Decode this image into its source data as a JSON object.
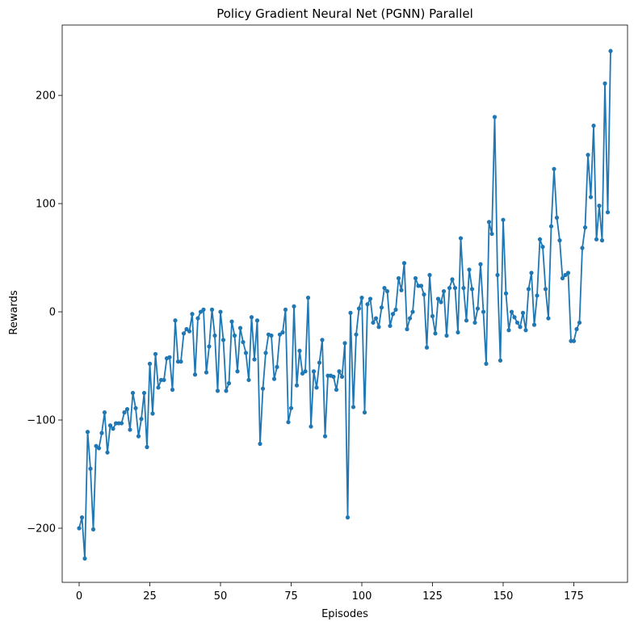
{
  "chart_data": {
    "type": "line",
    "title": "Policy Gradient Neural Net (PGNN) Parallel",
    "xlabel": "Episodes",
    "ylabel": "Rewards",
    "xlim": [
      -6,
      194
    ],
    "ylim": [
      -250,
      265
    ],
    "xticks": [
      0,
      25,
      50,
      75,
      100,
      125,
      150,
      175
    ],
    "yticks": [
      -200,
      -100,
      0,
      100,
      200
    ],
    "ytick_labels": [
      "−200",
      "−100",
      "0",
      "100",
      "200"
    ],
    "grid": false,
    "color": "#1f77b4",
    "series": [
      {
        "x": [
          0,
          1,
          2,
          3,
          4,
          5,
          6,
          7,
          8,
          9,
          10,
          11,
          12,
          13,
          14,
          15,
          16,
          17,
          18,
          19,
          20,
          21,
          22,
          23,
          24,
          25,
          26,
          27,
          28,
          29,
          30,
          31,
          32,
          33,
          34,
          35,
          36,
          37,
          38,
          39,
          40,
          41,
          42,
          43,
          44,
          45,
          46,
          47,
          48,
          49,
          50,
          51,
          52,
          53,
          54,
          55,
          56,
          57,
          58,
          59,
          60,
          61,
          62,
          63,
          64,
          65,
          66,
          67,
          68,
          69,
          70,
          71,
          72,
          73,
          74,
          75,
          76,
          77,
          78,
          79,
          80,
          81,
          82,
          83,
          84,
          85,
          86,
          87,
          88,
          89,
          90,
          91,
          92,
          93,
          94,
          95,
          96,
          97,
          98,
          99,
          100,
          101,
          102,
          103,
          104,
          105,
          106,
          107,
          108,
          109,
          110,
          111,
          112,
          113,
          114,
          115,
          116,
          117,
          118,
          119,
          120,
          121,
          122,
          123,
          124,
          125,
          126,
          127,
          128,
          129,
          130,
          131,
          132,
          133,
          134,
          135,
          136,
          137,
          138,
          139,
          140,
          141,
          142,
          143,
          144,
          145,
          146,
          147,
          148,
          149,
          150,
          151,
          152,
          153,
          154,
          155,
          156,
          157,
          158,
          159,
          160,
          161,
          162,
          163,
          164,
          165,
          166,
          167,
          168,
          169,
          170,
          171,
          172,
          173,
          174,
          175,
          176,
          177,
          178,
          179,
          180,
          181,
          182,
          183,
          184,
          185,
          186,
          187,
          188
        ],
        "y": [
          -200,
          -190,
          -228,
          -111,
          -145,
          -201,
          -124,
          -126,
          -112,
          -93,
          -130,
          -105,
          -108,
          -103,
          -103,
          -103,
          -93,
          -90,
          -109,
          -75,
          -89,
          -115,
          -99,
          -75,
          -125,
          -48,
          -94,
          -39,
          -70,
          -63,
          -63,
          -43,
          -42,
          -72,
          -8,
          -46,
          -46,
          -20,
          -16,
          -18,
          -2,
          -58,
          -6,
          0,
          2,
          -56,
          -32,
          2,
          -22,
          -73,
          0,
          -26,
          -73,
          -66,
          -9,
          -22,
          -55,
          -15,
          -28,
          -38,
          -63,
          -5,
          -44,
          -8,
          -122,
          -71,
          -38,
          -21,
          -22,
          -62,
          -51,
          -21,
          -19,
          2,
          -102,
          -89,
          5,
          -68,
          -36,
          -57,
          -55,
          13,
          -106,
          -55,
          -70,
          -47,
          -26,
          -115,
          -59,
          -59,
          -60,
          -72,
          -55,
          -60,
          -29,
          -190,
          -1,
          -88,
          -21,
          3,
          13,
          -93,
          7,
          12,
          -10,
          -6,
          -14,
          4,
          22,
          19,
          -13,
          -2,
          2,
          31,
          20,
          45,
          -16,
          -6,
          0,
          31,
          24,
          24,
          16,
          -33,
          34,
          -4,
          -20,
          12,
          9,
          19,
          -22,
          22,
          30,
          22,
          -19,
          68,
          22,
          -8,
          39,
          21,
          -10,
          3,
          44,
          0,
          -48,
          83,
          72,
          180,
          34,
          -45,
          85,
          17,
          -17,
          0,
          -5,
          -10,
          -14,
          -1,
          -17,
          21,
          36,
          -12,
          15,
          67,
          60,
          21,
          -6,
          79,
          132,
          87,
          66,
          31,
          34,
          36,
          -27,
          -27,
          -16,
          -10,
          59,
          78,
          145,
          106,
          172,
          67,
          98,
          66,
          211,
          92,
          241
        ]
      }
    ]
  }
}
